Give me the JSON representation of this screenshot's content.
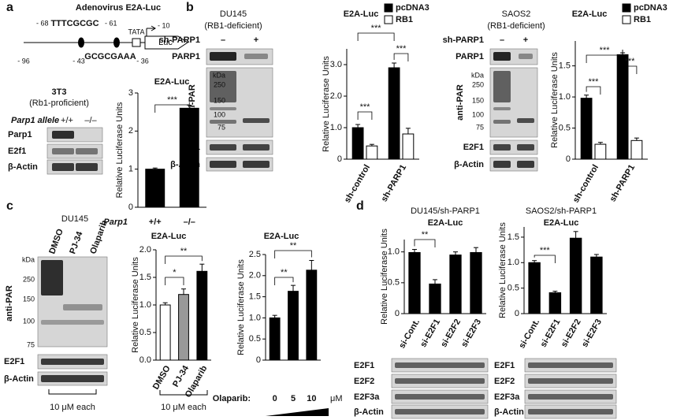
{
  "panels": [
    "a",
    "b",
    "c",
    "d"
  ],
  "promoter": {
    "title": "Adenovirus E2A-Luc",
    "site1": "TTTCGCGC",
    "site1_start": "- 68",
    "site1_end": "- 61",
    "start": "- 96",
    "site2": "GCGCGAAA",
    "site2_start": "- 43",
    "site2_end": "- 36",
    "tata": "TATA",
    "tata_pos": "- 10",
    "reporter": "Luc"
  },
  "blots": {
    "a": {
      "cell": "3T3",
      "status": "(Rb1-proficient)",
      "genotype_label": "Parp1 allele",
      "lanes": [
        "+/+",
        "–/–"
      ],
      "rows": [
        "Parp1",
        "E2f1",
        "β-Actin"
      ]
    },
    "b1": {
      "cell": "DU145",
      "status": "(RB1-deficient)",
      "treatment": "sh-PARP1",
      "lanes": [
        "–",
        "+"
      ],
      "rows": [
        "PARP1",
        "anti-PAR",
        "E2F1",
        "β-Actin"
      ],
      "ladder": [
        "kDa",
        "250",
        "150",
        "100",
        "75"
      ]
    },
    "b2": {
      "cell": "SAOS2",
      "status": "(RB1-deficient)",
      "treatment": "sh-PARP1",
      "lanes": [
        "–",
        "+"
      ],
      "rows": [
        "PARP1",
        "anti-PAR",
        "E2F1",
        "β-Actin"
      ],
      "ladder": [
        "kDa",
        "250",
        "150",
        "100",
        "75"
      ]
    },
    "c": {
      "cell": "DU145",
      "lanes": [
        "DMSO",
        "PJ-34",
        "Olaparib"
      ],
      "rows": [
        "anti-PAR",
        "E2F1",
        "β-Actin"
      ],
      "ladder": [
        "kDa",
        "250",
        "150",
        "100",
        "75"
      ],
      "note": "10 μM each"
    },
    "d1": {
      "rows": [
        "E2F1",
        "E2F2",
        "E2F3a",
        "β-Actin"
      ]
    },
    "d2": {
      "rows": [
        "E2F1",
        "E2F2",
        "E2F3a",
        "β-Actin"
      ]
    }
  },
  "chart_data": [
    {
      "type": "bar",
      "title": "E2A-Luc",
      "ylabel": "Relative Luciferase Units",
      "xlabel": "Parp1",
      "categories": [
        "+/+",
        "–/–"
      ],
      "values": [
        1.0,
        2.6
      ],
      "errors": [
        0.03,
        0.08
      ],
      "color": "#000000",
      "ylim": [
        0,
        3
      ],
      "yticks": [
        0,
        1,
        2,
        3
      ],
      "annotations": [
        {
          "label": "***",
          "between": [
            0,
            1
          ]
        }
      ]
    },
    {
      "type": "grouped_bar",
      "title": "E2A-Luc",
      "ylabel": "Relative Luciferase Units",
      "categories": [
        "sh-control",
        "sh-PARP1"
      ],
      "series": [
        {
          "name": "pcDNA3",
          "color": "#000000",
          "values": [
            1.0,
            2.9
          ],
          "errors": [
            0.1,
            0.15
          ]
        },
        {
          "name": "RB1",
          "color": "#ffffff",
          "values": [
            0.42,
            0.8
          ],
          "errors": [
            0.05,
            0.18
          ]
        }
      ],
      "ylim": [
        0,
        3.5
      ],
      "yticks": [
        0,
        {
          "value": 1,
          "label": "1.0"
        },
        {
          "value": 2,
          "label": "2.0"
        },
        {
          "value": 3,
          "label": "3.0"
        }
      ],
      "annotations": [
        {
          "label": "***",
          "between": [
            0,
            2
          ]
        },
        {
          "label": "***",
          "between": [
            0,
            1
          ]
        },
        {
          "label": "***",
          "between": [
            2,
            3
          ]
        }
      ]
    },
    {
      "type": "grouped_bar",
      "title": "E2A-Luc",
      "ylabel": "Relative Luciferase Units",
      "categories": [
        "sh-control",
        "sh-PARP1"
      ],
      "series": [
        {
          "name": "pcDNA3",
          "color": "#000000",
          "values": [
            0.98,
            1.68
          ],
          "errors": [
            0.05,
            0.03
          ]
        },
        {
          "name": "RB1",
          "color": "#ffffff",
          "values": [
            0.24,
            0.3
          ],
          "errors": [
            0.03,
            0.04
          ]
        }
      ],
      "ylim": [
        0,
        1.9
      ],
      "yticks": [
        0,
        0.5,
        {
          "value": 1,
          "label": "1.0"
        },
        1.5
      ],
      "annotations": [
        {
          "label": "***",
          "between": [
            0,
            2
          ]
        },
        {
          "label": "***",
          "between": [
            0,
            1
          ]
        },
        {
          "label": "***",
          "between": [
            2,
            3
          ]
        }
      ]
    },
    {
      "type": "bar",
      "title": "E2A-Luc",
      "ylabel": "Relative Luciferase Units",
      "categories": [
        "DMSO",
        "PJ-34",
        "Olaparib"
      ],
      "values": [
        1.0,
        1.19,
        1.61
      ],
      "errors": [
        0.04,
        0.1,
        0.13
      ],
      "colors": [
        "#ffffff",
        "#999999",
        "#000000"
      ],
      "note": "10 μM each",
      "ylim": [
        0,
        2
      ],
      "yticks": [
        {
          "value": 0,
          "label": "0.0"
        },
        0.5,
        {
          "value": 1,
          "label": "1.0"
        },
        1.5,
        {
          "value": 2,
          "label": "2.0"
        }
      ],
      "annotations": [
        {
          "label": "*",
          "between": [
            0,
            1
          ]
        },
        {
          "label": "**",
          "between": [
            0,
            2
          ]
        }
      ]
    },
    {
      "type": "bar",
      "title": "E2A-Luc",
      "ylabel": "Relative Luciferase Units",
      "xlabel": "Olaparib:",
      "xunit": "μM",
      "categories": [
        "0",
        "5",
        "10"
      ],
      "values": [
        1.0,
        1.63,
        2.13
      ],
      "errors": [
        0.06,
        0.14,
        0.23
      ],
      "color": "#000000",
      "ylim": [
        0,
        2.5
      ],
      "yticks": [
        0,
        0.5,
        {
          "value": 1,
          "label": "1.0"
        },
        1.5,
        {
          "value": 2,
          "label": "2.0"
        },
        2.5
      ],
      "annotations": [
        {
          "label": "**",
          "between": [
            0,
            1
          ]
        },
        {
          "label": "**",
          "between": [
            0,
            2
          ]
        }
      ]
    },
    {
      "type": "bar",
      "subtitle": "DU145/sh-PARP1",
      "title": "E2A-Luc",
      "ylabel": "Relative Luciferase Units",
      "categories": [
        "si-Cont.",
        "si-E2F1",
        "si-E2F2",
        "si-E2F3"
      ],
      "values": [
        0.99,
        0.48,
        0.95,
        0.99
      ],
      "errors": [
        0.05,
        0.07,
        0.05,
        0.08
      ],
      "color": "#000000",
      "ylim": [
        0,
        1.2
      ],
      "yticks": [
        0,
        0.5,
        {
          "value": 1,
          "label": "1.0"
        }
      ],
      "annotations": [
        {
          "label": "**",
          "between": [
            0,
            1
          ]
        }
      ]
    },
    {
      "type": "bar",
      "subtitle": "SAOS2/sh-PARP1",
      "title": "E2A-Luc",
      "ylabel": "Relative Luciferase Units",
      "categories": [
        "si-Cont.",
        "si-E2F1",
        "si-E2F2",
        "si-E2F3"
      ],
      "values": [
        1.0,
        0.41,
        1.48,
        1.11
      ],
      "errors": [
        0.04,
        0.03,
        0.13,
        0.05
      ],
      "color": "#000000",
      "ylim": [
        0,
        1.7
      ],
      "yticks": [
        0,
        0.5,
        {
          "value": 1,
          "label": "1.0"
        },
        1.5
      ],
      "annotations": [
        {
          "label": "***",
          "between": [
            0,
            1
          ]
        }
      ]
    }
  ]
}
